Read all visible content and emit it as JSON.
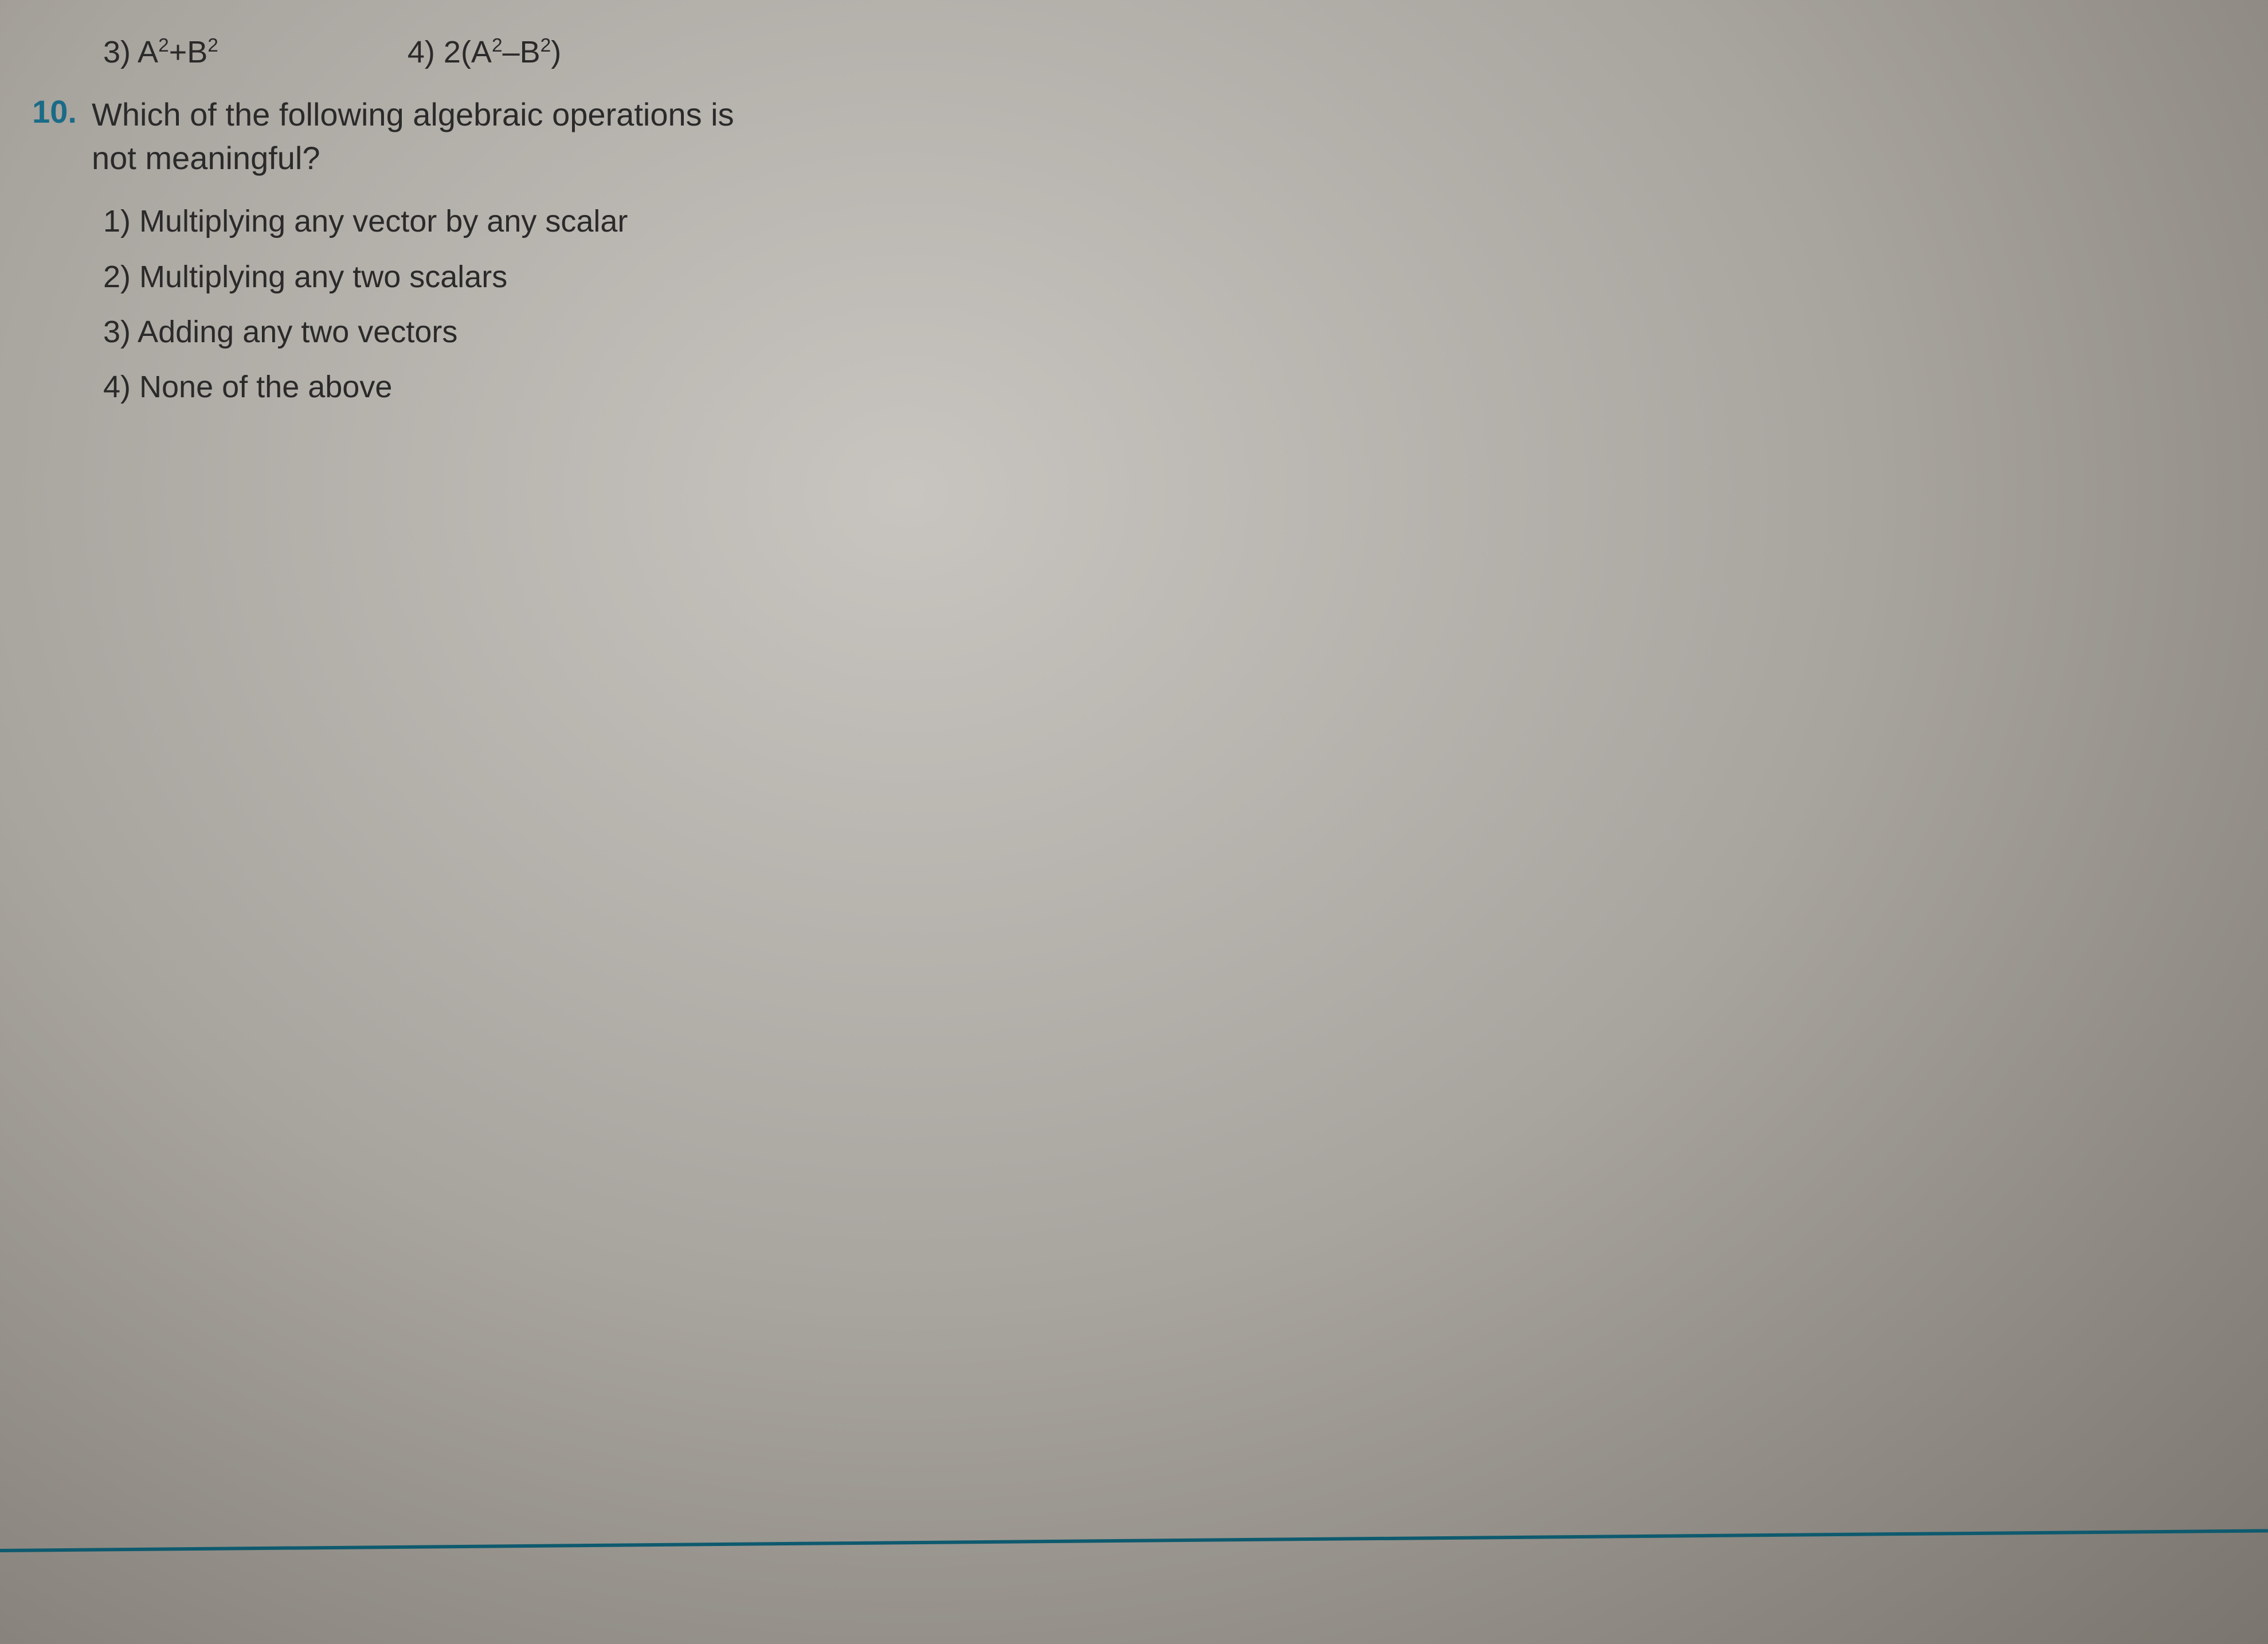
{
  "document": {
    "background_gradient": [
      "#c8c4bf",
      "#a8a49e",
      "#7a756e"
    ],
    "text_color": "#2a2a2a",
    "accent_color": "#1a6b87",
    "rule_color": "#0e5a6e",
    "font_family": "Arial",
    "base_font_size_pt": 40
  },
  "prev_question_options": {
    "opt3": {
      "label": "3)",
      "expression_html": "A<sup>2</sup>+B<sup>2</sup>"
    },
    "opt4": {
      "label": "4)",
      "expression_html": "2(A<sup>2</sup>–B<sup>2</sup>)"
    }
  },
  "question": {
    "number": "10.",
    "text": "Which of the following algebraic operations is not meaningful?",
    "options": [
      {
        "label": "1)",
        "text": "Multiplying any vector by any scalar"
      },
      {
        "label": "2)",
        "text": "Multiplying any two scalars"
      },
      {
        "label": "3)",
        "text": "Adding any two vectors"
      },
      {
        "label": "4)",
        "text": "None of the above"
      }
    ]
  }
}
